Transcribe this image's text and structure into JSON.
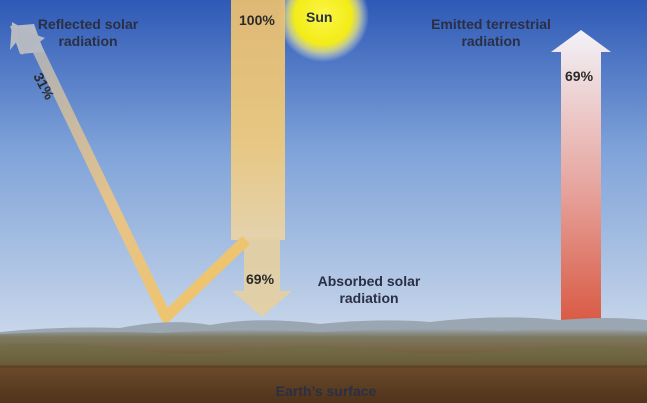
{
  "labels": {
    "sun": "Sun",
    "reflected": [
      "Reflected solar",
      "radiation"
    ],
    "emitted": [
      "Emitted terrestrial",
      "radiation"
    ],
    "absorbed": [
      "Absorbed solar",
      "radiation"
    ],
    "surface": "Earth’s surface"
  },
  "values": {
    "incoming": "100%",
    "reflected": "31%",
    "absorbed": "69%",
    "emitted": "69%"
  },
  "colors": {
    "sky_top": "#2e59b6",
    "sky_mid": "#7fa3d9",
    "sky_horizon": "#c9d7ea",
    "sun": "#f3ec17",
    "solar_beam": "#edc36a",
    "reflected_arrow_tip": "#b3b8c1",
    "emitted_arrow_top": "#eef0f8",
    "emitted_arrow_bottom": "#da5e48",
    "ground": "#7b6443",
    "soil": "#5c3e22"
  }
}
